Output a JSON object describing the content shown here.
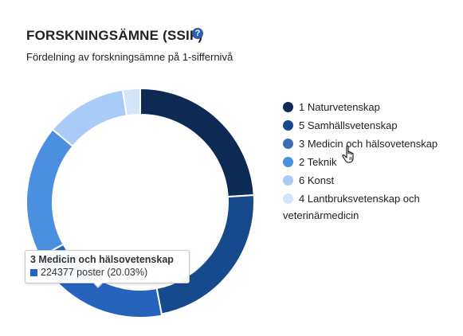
{
  "header": {
    "title": "FORSKNINGSÄMNE (SSIF)",
    "help_icon": "question-circle-icon",
    "subtitle": "Fördelning av forskningsämne på 1-siffernivå"
  },
  "chart_data": {
    "type": "pie",
    "donut": true,
    "title": "FORSKNINGSÄMNE (SSIF)",
    "subtitle": "Fördelning av forskningsämne på 1-siffernivå",
    "legend_position": "right",
    "series": [
      {
        "name": "1 Naturvetenskap",
        "value": 0.24,
        "color": "#0d2a55"
      },
      {
        "name": "5 Samhällsvetenskap",
        "value": 0.23,
        "color": "#164a8c"
      },
      {
        "name": "3 Medicin och hälsovetenskap",
        "value": 0.2003,
        "color": "#2563bd",
        "hovered": true
      },
      {
        "name": "2 Teknik",
        "value": 0.19,
        "color": "#4a8fe0"
      },
      {
        "name": "6 Konst",
        "value": 0.115,
        "color": "#a9cbf7"
      },
      {
        "name": "4 Lantbruksvetenskap och veterinärmedicin",
        "value": 0.0247,
        "color": "#d3e4fb"
      }
    ]
  },
  "legend": {
    "items": [
      {
        "label": "1 Naturvetenskap",
        "color": "#0d2a55"
      },
      {
        "label": "5 Samhällsvetenskap",
        "color": "#164a8c"
      },
      {
        "label": "3 Medicin och hälsovetenskap",
        "color": "#3b6db3"
      },
      {
        "label": "2 Teknik",
        "color": "#4a8fe0"
      },
      {
        "label": "6 Konst",
        "color": "#a9cbf7"
      },
      {
        "label_line1": "4 Lantbruksvetenskap och",
        "label_line2": "veterinärmedicin",
        "color": "#d3e4fb"
      }
    ]
  },
  "tooltip": {
    "title": "3 Medicin och hälsovetenskap",
    "value_text": "224377 poster (20.03%)",
    "color": "#2563bd"
  },
  "cursor": "hand-pointer-icon"
}
